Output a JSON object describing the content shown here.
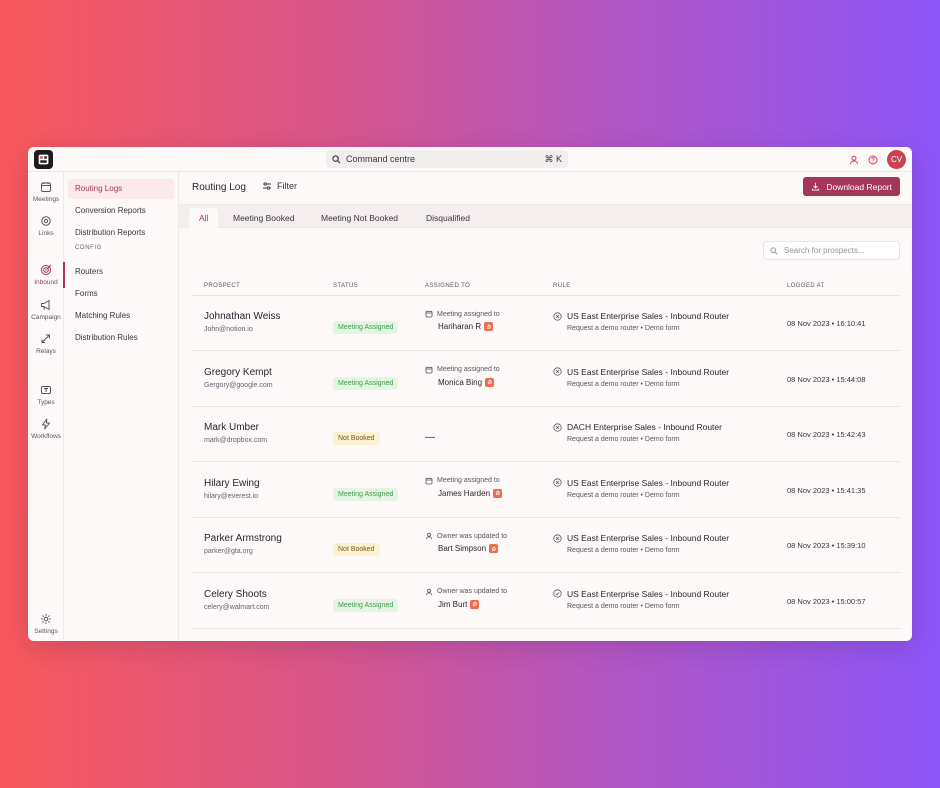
{
  "command": {
    "placeholder": "Command centre",
    "shortcut": "⌘ K"
  },
  "user": {
    "initials": "CV"
  },
  "rail": [
    {
      "label": "Meetings",
      "icon": "calendar-icon"
    },
    {
      "label": "Links",
      "icon": "link-icon"
    },
    {
      "label": "Inbound",
      "icon": "target-icon",
      "active": true
    },
    {
      "label": "Campaign",
      "icon": "megaphone-icon"
    },
    {
      "label": "Relays",
      "icon": "relay-icon"
    },
    {
      "label": "Types",
      "icon": "types-icon"
    },
    {
      "label": "Workflows",
      "icon": "bolt-icon"
    },
    {
      "label": "Settings",
      "icon": "gear-icon"
    }
  ],
  "subnav": {
    "items": [
      "Routing Logs",
      "Conversion Reports",
      "Distribution Reports"
    ],
    "config_heading": "CONFIG",
    "config_items": [
      "Routers",
      "Forms",
      "Matching Rules",
      "Distribution Rules"
    ]
  },
  "header": {
    "title": "Routing Log",
    "filter": "Filter",
    "download": "Download Report"
  },
  "tabs": [
    "All",
    "Meeting Booked",
    "Meeting Not Booked",
    "Disqualified"
  ],
  "search": {
    "placeholder": "Search for prospects..."
  },
  "columns": [
    "PROSPECT",
    "STATUS",
    "ASSIGNED TO",
    "RULE",
    "LOGGED AT"
  ],
  "rows": [
    {
      "name": "Johnathan Weiss",
      "email": "John@notion.io",
      "status": "Meeting Assigned",
      "status_color": "green",
      "assign_note": "Meeting assigned to",
      "assignee": "Hariharan R",
      "assign_icon": "calendar-icon",
      "rule": "US East Enterprise Sales - Inbound Router",
      "rule_sub": "Request a demo router • Demo form",
      "logged": "08 Nov 2023 • 16:10:41"
    },
    {
      "name": "Gregory Kempt",
      "email": "Gergory@google.com",
      "status": "Meeting Assigned",
      "status_color": "green",
      "assign_note": "Meeting assigned to",
      "assignee": "Monica Bing",
      "assign_icon": "calendar-icon",
      "rule": "US East Enterprise Sales - Inbound Router",
      "rule_sub": "Request a demo router • Demo form",
      "logged": "08 Nov 2023 • 15:44:08"
    },
    {
      "name": "Mark Umber",
      "email": "mark@dropbox.com",
      "status": "Not Booked",
      "status_color": "yellow",
      "assign_note": "",
      "assignee": "—",
      "assign_icon": "",
      "rule": "DACH Enterprise Sales - Inbound Router",
      "rule_sub": "Request a demo router • Demo form",
      "logged": "08 Nov 2023 • 15:42:43"
    },
    {
      "name": "Hilary Ewing",
      "email": "hilary@everest.io",
      "status": "Meeting Assigned",
      "status_color": "green",
      "assign_note": "Meeting assigned to",
      "assignee": "James Harden",
      "assign_icon": "calendar-icon",
      "rule": "US East Enterprise Sales - Inbound Router",
      "rule_sub": "Request a demo router • Demo form",
      "logged": "08 Nov 2023 • 15:41:35"
    },
    {
      "name": "Parker Armstrong",
      "email": "parker@gta.org",
      "status": "Not Booked",
      "status_color": "yellow",
      "assign_note": "Owner was updated to",
      "assignee": "Bart Simpson",
      "assign_icon": "user-icon",
      "rule": "US East Enterprise Sales - Inbound Router",
      "rule_sub": "Request a demo router • Demo form",
      "logged": "08 Nov 2023 • 15:39:10"
    },
    {
      "name": "Celery Shoots",
      "email": "celery@walmart.com",
      "status": "Meeting Assigned",
      "status_color": "green",
      "assign_note": "Owner was updated to",
      "assignee": "Jim Burt",
      "assign_icon": "user-icon",
      "rule": "US East Enterprise Sales - Inbound Router",
      "rule_sub": "Request a demo router • Demo form",
      "logged": "08 Nov 2023 • 15:00:57"
    }
  ],
  "colors": {
    "accent": "#a4365a",
    "green_bg": "#e4f5e4",
    "yellow_bg": "#fdf1cf",
    "hubspot": "#ef6d4f"
  }
}
